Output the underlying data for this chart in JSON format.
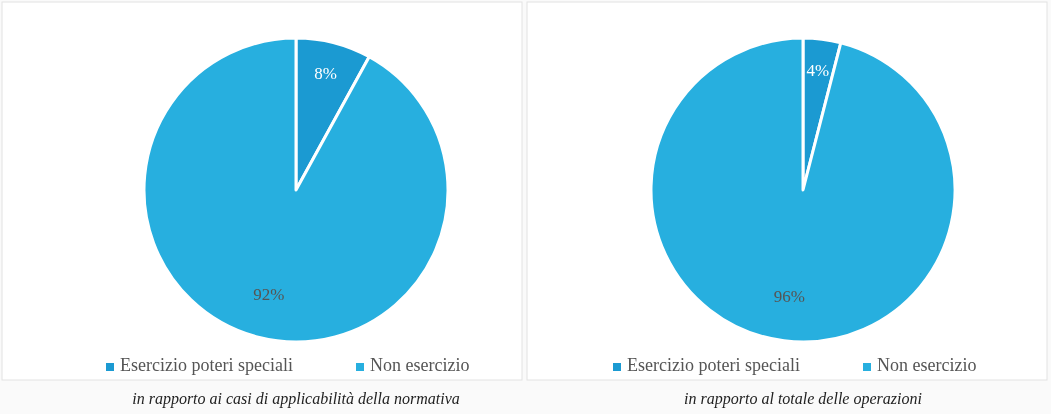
{
  "chart_data": [
    {
      "type": "pie",
      "categories": [
        "Esercizio poteri speciali",
        "Non esercizio"
      ],
      "values": [
        8,
        92
      ],
      "colors": [
        "#1b9ad2",
        "#27afdf"
      ],
      "value_labels": [
        "8%",
        "92%"
      ],
      "legend": "bottom",
      "annotations": [
        "in rapporto ai casi di applicabilità della normativa"
      ]
    },
    {
      "type": "pie",
      "categories": [
        "Esercizio poteri speciali",
        "Non esercizio"
      ],
      "values": [
        4,
        96
      ],
      "colors": [
        "#1b9ad2",
        "#27afdf"
      ],
      "value_labels": [
        "4%",
        "96%"
      ],
      "legend": "bottom",
      "annotations": [
        "in rapporto al totale delle operazioni"
      ]
    }
  ]
}
